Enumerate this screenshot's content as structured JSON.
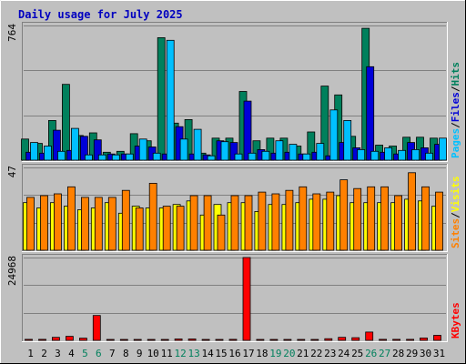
{
  "title": "Daily usage for July 2025",
  "colors": {
    "background": "#C0C0C0",
    "frame_dark": "#808080",
    "frame_light": "#FFFFFF",
    "title": "#0000C0",
    "weekend_label": "#00805C",
    "hits": "#00805C",
    "files": "#0000D8",
    "pages": "#00C0FF",
    "visits": "#FFFF00",
    "sites": "#FF8000",
    "kbytes": "#FF0000"
  },
  "chart_data": [
    {
      "type": "bar",
      "id": "hits-files-pages",
      "title": "Daily usage for July 2025",
      "y_max_label": "764",
      "ylim": [
        0,
        764
      ],
      "grid": true,
      "legend": [
        {
          "name": "Pages",
          "color": "#00C0FF"
        },
        {
          "name": "/",
          "color": "#000000"
        },
        {
          "name": "Files",
          "color": "#0000D8"
        },
        {
          "name": "/",
          "color": "#000000"
        },
        {
          "name": "Hits",
          "color": "#00805C"
        }
      ],
      "categories": [
        "1",
        "2",
        "3",
        "4",
        "5",
        "6",
        "7",
        "8",
        "9",
        "10",
        "11",
        "12",
        "13",
        "14",
        "15",
        "16",
        "17",
        "18",
        "19",
        "20",
        "21",
        "22",
        "23",
        "24",
        "25",
        "26",
        "27",
        "28",
        "29",
        "30",
        "31"
      ],
      "series": [
        {
          "name": "Hits",
          "values": [
            120,
            95,
            225,
            430,
            140,
            155,
            45,
            50,
            150,
            110,
            695,
            210,
            230,
            40,
            125,
            125,
            390,
            110,
            125,
            125,
            80,
            160,
            420,
            370,
            135,
            748,
            85,
            80,
            130,
            130,
            125
          ]
        },
        {
          "name": "Files",
          "values": [
            45,
            40,
            170,
            55,
            135,
            115,
            35,
            35,
            80,
            75,
            35,
            190,
            35,
            30,
            110,
            100,
            335,
            60,
            40,
            45,
            35,
            45,
            25,
            100,
            70,
            530,
            45,
            35,
            100,
            70,
            90
          ]
        },
        {
          "name": "Pages",
          "values": [
            100,
            80,
            50,
            180,
            30,
            30,
            30,
            35,
            120,
            40,
            680,
            120,
            175,
            25,
            105,
            35,
            40,
            50,
            110,
            90,
            35,
            95,
            285,
            225,
            60,
            50,
            70,
            55,
            60,
            40,
            125
          ]
        }
      ]
    },
    {
      "type": "bar",
      "id": "visits-sites",
      "y_max_label": "47",
      "ylim": [
        0,
        47
      ],
      "grid": true,
      "legend": [
        {
          "name": "Sites",
          "color": "#FF8000"
        },
        {
          "name": "/",
          "color": "#000000"
        },
        {
          "name": "Visits",
          "color": "#FFFF00"
        }
      ],
      "categories": [
        "1",
        "2",
        "3",
        "4",
        "5",
        "6",
        "7",
        "8",
        "9",
        "10",
        "11",
        "12",
        "13",
        "14",
        "15",
        "16",
        "17",
        "18",
        "19",
        "20",
        "21",
        "22",
        "23",
        "24",
        "25",
        "26",
        "27",
        "28",
        "29",
        "30",
        "31"
      ],
      "series": [
        {
          "name": "Visits",
          "values": [
            27,
            24,
            27,
            25,
            23,
            24,
            27,
            21,
            25,
            24,
            24,
            26,
            28,
            20,
            26,
            27,
            27,
            22,
            26,
            26,
            27,
            29,
            29,
            31,
            27,
            27,
            27,
            27,
            29,
            28,
            25
          ]
        },
        {
          "name": "Sites",
          "values": [
            30,
            31,
            32,
            36,
            30,
            30,
            30,
            34,
            24,
            38,
            25,
            25,
            31,
            31,
            20,
            31,
            31,
            33,
            32,
            34,
            36,
            32,
            33,
            40,
            35,
            36,
            36,
            31,
            44,
            36,
            33
          ]
        }
      ]
    },
    {
      "type": "bar",
      "id": "kbytes",
      "y_max_label": "24968",
      "ylim": [
        0,
        24968
      ],
      "grid": true,
      "legend": [
        {
          "name": "KBytes",
          "color": "#FF0000"
        }
      ],
      "categories": [
        "1",
        "2",
        "3",
        "4",
        "5",
        "6",
        "7",
        "8",
        "9",
        "10",
        "11",
        "12",
        "13",
        "14",
        "15",
        "16",
        "17",
        "18",
        "19",
        "20",
        "21",
        "22",
        "23",
        "24",
        "25",
        "26",
        "27",
        "28",
        "29",
        "30",
        "31"
      ],
      "series": [
        {
          "name": "KBytes",
          "values": [
            300,
            300,
            900,
            1200,
            650,
            7500,
            150,
            150,
            150,
            150,
            150,
            400,
            400,
            150,
            250,
            300,
            24968,
            150,
            150,
            150,
            150,
            150,
            500,
            900,
            800,
            2500,
            300,
            300,
            300,
            700,
            1500
          ]
        }
      ]
    }
  ],
  "weekend_days": [
    "5",
    "6",
    "12",
    "13",
    "19",
    "20",
    "26",
    "27"
  ]
}
